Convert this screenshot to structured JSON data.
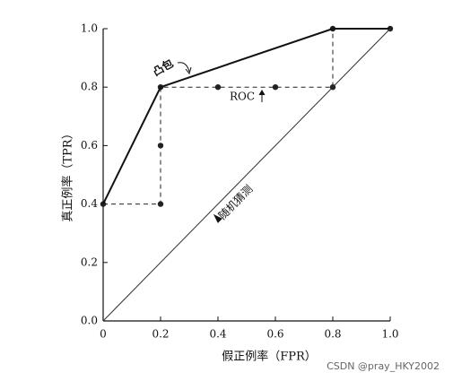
{
  "chart_data": {
    "type": "line",
    "xlabel": "假正例率（FPR）",
    "ylabel": "真正例率（TPR）",
    "xlim": [
      0,
      1
    ],
    "ylim": [
      0,
      1
    ],
    "xticks": [
      0,
      0.2,
      0.4,
      0.6,
      0.8,
      {
        "value": 1,
        "label": "1.0"
      }
    ],
    "yticks": [
      {
        "value": 0,
        "label": "0.0"
      },
      0.2,
      0.4,
      0.6,
      0.8,
      {
        "value": 1,
        "label": "1.0"
      }
    ],
    "series": [
      {
        "name": "ROC",
        "color": "#222222",
        "style": "dashed",
        "markers": true,
        "x": [
          0,
          0.2,
          0.2,
          0.2,
          0.4,
          0.6,
          0.8,
          0.8,
          1
        ],
        "values": [
          0.4,
          0.4,
          0.6,
          0.8,
          0.8,
          0.8,
          0.8,
          1,
          1
        ]
      },
      {
        "name": "凸包",
        "color": "#111111",
        "style": "solid",
        "markers": false,
        "x": [
          0,
          0.2,
          0.8,
          1
        ],
        "values": [
          0.4,
          0.8,
          1,
          1
        ]
      },
      {
        "name": "随机猜测",
        "color": "#333333",
        "style": "solid",
        "markers": false,
        "x": [
          0,
          1
        ],
        "values": [
          0,
          1
        ]
      }
    ],
    "watermark": "CSDN @pray_HKY2002"
  }
}
